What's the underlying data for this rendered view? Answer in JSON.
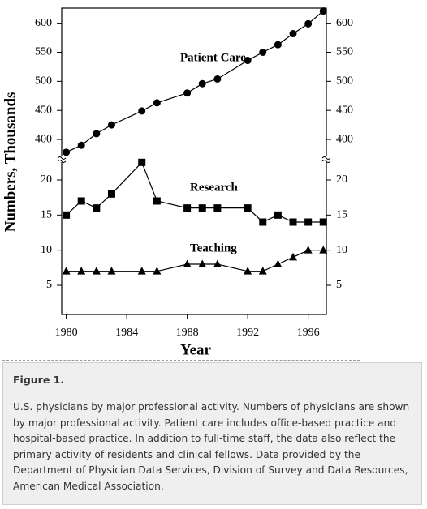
{
  "chart_data": [
    {
      "type": "line",
      "y_label": "Numbers, Thousands",
      "x": [
        1980,
        1981,
        1982,
        1983,
        1985,
        1986,
        1988,
        1989,
        1990,
        1992,
        1993,
        1994,
        1995,
        1996,
        1997
      ],
      "xlim": [
        1979.7,
        1997.2
      ],
      "ylim": [
        368,
        626
      ],
      "yticks": [
        400,
        450,
        500,
        550,
        600
      ],
      "series": [
        {
          "name": "Patient Care",
          "color": "#000000",
          "marker": "circle",
          "values": [
            378,
            390,
            410,
            425,
            449,
            463,
            480,
            496,
            504,
            536,
            550,
            563,
            582,
            599,
            621
          ]
        }
      ]
    },
    {
      "type": "line",
      "x_label": "Year",
      "x": [
        1980,
        1981,
        1982,
        1983,
        1985,
        1986,
        1988,
        1989,
        1990,
        1992,
        1993,
        1994,
        1995,
        1996,
        1997
      ],
      "xlim": [
        1979.7,
        1997.2
      ],
      "xticks": [
        1980,
        1984,
        1988,
        1992,
        1996
      ],
      "ylim": [
        0.85,
        22.65
      ],
      "yticks": [
        5,
        10,
        15,
        20
      ],
      "series": [
        {
          "name": "Research",
          "color": "#000000",
          "marker": "square",
          "values": [
            15,
            17,
            16,
            18,
            22.5,
            17,
            16,
            16,
            16,
            16,
            14,
            15,
            14,
            14,
            14
          ]
        },
        {
          "name": "Teaching",
          "color": "#000000",
          "marker": "triangle",
          "values": [
            7,
            7,
            7,
            7,
            7,
            7,
            8,
            8,
            8,
            7,
            7,
            8,
            9,
            10,
            10
          ]
        }
      ]
    }
  ],
  "figure": {
    "label": "Figure 1.",
    "caption": "U.S. physicians by major professional activity. Numbers of physicians are shown by major professional activity. Patient care includes office-based practice and hospital-based practice. In addition to full-time staff, the data also reflect the primary activity of residents and clinical fellows. Data provided by the Department of Physician Data Services, Division of Survey and Data Resources, American Medical Association."
  }
}
